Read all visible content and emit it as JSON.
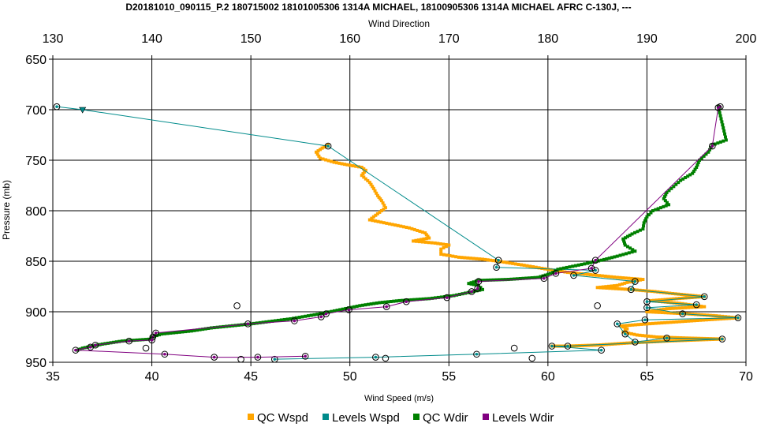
{
  "chart_data": {
    "type": "line",
    "title": "D20181010_090115_P.2 180715002 18101005306 1314A MICHAEL, 18100905306 1314A MICHAEL AFRC C-130J, ---",
    "x_bottom": {
      "label": "Wind Speed (m/s)",
      "range": [
        35,
        70
      ],
      "ticks": [
        35,
        40,
        45,
        50,
        55,
        60,
        65,
        70
      ]
    },
    "x_top": {
      "label": "Wind Direction",
      "range": [
        130,
        200
      ],
      "ticks": [
        130,
        140,
        150,
        160,
        170,
        180,
        190,
        200
      ]
    },
    "y": {
      "label": "Pressure (mb)",
      "range": [
        650,
        950
      ],
      "inverted": true,
      "ticks": [
        650,
        700,
        750,
        800,
        850,
        900,
        950
      ]
    },
    "grid": true,
    "legend_position": "bottom",
    "colors": {
      "qc_wspd": "#FFA500",
      "levels_wspd": "#008B8B",
      "qc_wdir": "#008000",
      "levels_wdir": "#800080"
    },
    "series": [
      {
        "name": "QC Wspd",
        "axis": "bottom",
        "points": [
          [
            48.9,
            735
          ],
          [
            48.6,
            738
          ],
          [
            48.3,
            742
          ],
          [
            48.5,
            748
          ],
          [
            49.2,
            752
          ],
          [
            50.0,
            755
          ],
          [
            50.6,
            757
          ],
          [
            50.8,
            760
          ],
          [
            50.6,
            765
          ],
          [
            51.0,
            772
          ],
          [
            51.2,
            778
          ],
          [
            51.4,
            785
          ],
          [
            51.6,
            790
          ],
          [
            51.8,
            797
          ],
          [
            51.4,
            803
          ],
          [
            51.0,
            809
          ],
          [
            52.0,
            813
          ],
          [
            53.0,
            817
          ],
          [
            53.8,
            822
          ],
          [
            54.0,
            827
          ],
          [
            53.2,
            830
          ],
          [
            54.3,
            832
          ],
          [
            55.0,
            834
          ],
          [
            54.6,
            838
          ],
          [
            54.6,
            843
          ],
          [
            55.5,
            846
          ],
          [
            56.7,
            848
          ],
          [
            57.5,
            850
          ],
          [
            58.8,
            854
          ],
          [
            60.0,
            858
          ],
          [
            61.0,
            861
          ],
          [
            62.0,
            863
          ],
          [
            63.5,
            866
          ],
          [
            64.8,
            868
          ],
          [
            64.0,
            871
          ],
          [
            63.5,
            874
          ],
          [
            62.5,
            876
          ],
          [
            64.2,
            878
          ],
          [
            65.4,
            880
          ],
          [
            66.3,
            882
          ],
          [
            67.9,
            885
          ],
          [
            66.5,
            887
          ],
          [
            65.2,
            889
          ],
          [
            66.8,
            892
          ],
          [
            67.9,
            895
          ],
          [
            66.0,
            897
          ],
          [
            65.0,
            900
          ],
          [
            67.0,
            902
          ],
          [
            68.5,
            904
          ],
          [
            69.6,
            906
          ],
          [
            68.0,
            908
          ],
          [
            66.5,
            910
          ],
          [
            65.0,
            912
          ],
          [
            63.7,
            914
          ],
          [
            64.0,
            917
          ],
          [
            63.8,
            920
          ],
          [
            64.5,
            923
          ],
          [
            65.5,
            925
          ],
          [
            67.0,
            926
          ],
          [
            68.8,
            927
          ],
          [
            66.0,
            929
          ],
          [
            64.0,
            931
          ],
          [
            62.5,
            933
          ],
          [
            61.0,
            934
          ],
          [
            60.2,
            934
          ]
        ]
      },
      {
        "name": "Levels Wspd",
        "axis": "bottom",
        "points": [
          [
            35.2,
            697
          ],
          [
            36.5,
            700
          ],
          [
            48.9,
            736
          ],
          [
            57.5,
            849
          ],
          [
            57.4,
            856
          ],
          [
            62.4,
            859
          ],
          [
            61.3,
            864
          ],
          [
            64.4,
            870
          ],
          [
            64.2,
            878
          ],
          [
            67.9,
            885
          ],
          [
            65.0,
            890
          ],
          [
            67.5,
            893
          ],
          [
            65.0,
            896
          ],
          [
            66.8,
            902
          ],
          [
            69.6,
            906
          ],
          [
            64.9,
            908
          ],
          [
            63.5,
            912
          ],
          [
            63.9,
            922
          ],
          [
            64.4,
            930
          ],
          [
            66.0,
            926
          ],
          [
            68.8,
            927
          ],
          [
            61.0,
            934
          ],
          [
            60.2,
            934
          ],
          [
            62.7,
            938
          ],
          [
            56.4,
            942
          ],
          [
            51.3,
            945
          ],
          [
            46.2,
            947
          ]
        ]
      },
      {
        "name": "QC Wdir",
        "axis": "top",
        "points": [
          [
            197.2,
            697
          ],
          [
            198.0,
            730
          ],
          [
            196.6,
            735
          ],
          [
            196.2,
            742
          ],
          [
            195.3,
            750
          ],
          [
            195.0,
            757
          ],
          [
            194.6,
            763
          ],
          [
            193.4,
            770
          ],
          [
            192.7,
            776
          ],
          [
            192.0,
            782
          ],
          [
            191.7,
            788
          ],
          [
            192.2,
            794
          ],
          [
            190.6,
            800
          ],
          [
            190.0,
            806
          ],
          [
            189.7,
            812
          ],
          [
            189.6,
            818
          ],
          [
            188.5,
            823
          ],
          [
            187.6,
            828
          ],
          [
            187.8,
            834
          ],
          [
            188.8,
            840
          ],
          [
            187.0,
            845
          ],
          [
            185.4,
            849
          ],
          [
            184.0,
            852
          ],
          [
            182.5,
            855
          ],
          [
            181.0,
            858
          ],
          [
            180.5,
            861
          ],
          [
            180.0,
            863
          ],
          [
            179.0,
            866
          ],
          [
            176.0,
            868
          ],
          [
            173.0,
            869
          ],
          [
            172.0,
            872
          ],
          [
            173.0,
            874
          ],
          [
            173.4,
            878
          ],
          [
            170.5,
            884
          ],
          [
            168.0,
            887
          ],
          [
            165.0,
            889
          ],
          [
            163.0,
            891
          ],
          [
            161.0,
            894
          ],
          [
            159.0,
            898
          ],
          [
            157.0,
            902
          ],
          [
            154.0,
            907
          ],
          [
            150.0,
            912
          ],
          [
            146.0,
            916
          ],
          [
            144.0,
            919
          ],
          [
            141.0,
            922
          ],
          [
            140.0,
            925
          ],
          [
            140.0,
            927
          ],
          [
            137.0,
            929
          ],
          [
            135.0,
            932
          ],
          [
            134.0,
            934
          ],
          [
            133.0,
            936
          ],
          [
            132.5,
            938
          ]
        ]
      },
      {
        "name": "Levels Wdir",
        "axis": "top",
        "points": [
          [
            197.4,
            697
          ],
          [
            197.2,
            698
          ],
          [
            196.6,
            736
          ],
          [
            184.8,
            849
          ],
          [
            184.4,
            857
          ],
          [
            180.8,
            862
          ],
          [
            179.6,
            867
          ],
          [
            173.0,
            870
          ],
          [
            172.9,
            877
          ],
          [
            172.3,
            880
          ],
          [
            169.8,
            886
          ],
          [
            165.7,
            890
          ],
          [
            163.7,
            895
          ],
          [
            159.9,
            898
          ],
          [
            157.6,
            902
          ],
          [
            157.1,
            905
          ],
          [
            154.4,
            909
          ],
          [
            149.7,
            912
          ],
          [
            140.4,
            921
          ],
          [
            140.1,
            925
          ],
          [
            140.0,
            928
          ],
          [
            137.7,
            929
          ],
          [
            134.3,
            933
          ],
          [
            133.8,
            935
          ],
          [
            132.3,
            938
          ],
          [
            141.3,
            942
          ],
          [
            146.3,
            945
          ],
          [
            150.7,
            945
          ],
          [
            155.5,
            944
          ]
        ]
      },
      {
        "name": "Unlinked markers",
        "axis": "bottom",
        "points": [
          [
            44.3,
            894
          ],
          [
            62.5,
            894
          ],
          [
            39.7,
            936
          ],
          [
            58.3,
            936
          ],
          [
            59.2,
            946
          ],
          [
            51.8,
            946
          ],
          [
            44.5,
            947
          ]
        ]
      }
    ],
    "legend": [
      {
        "name": "QC Wspd",
        "color": "#FFA500"
      },
      {
        "name": "Levels Wspd",
        "color": "#008B8B"
      },
      {
        "name": "QC Wdir",
        "color": "#008000"
      },
      {
        "name": "Levels Wdir",
        "color": "#800080"
      }
    ]
  }
}
